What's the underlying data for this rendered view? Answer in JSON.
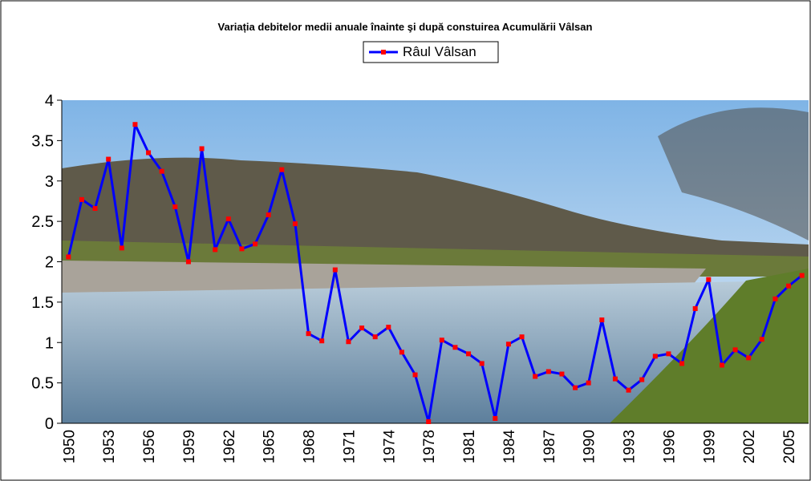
{
  "chart_data": {
    "type": "line",
    "title": "Variația debitelor medii anuale  înainte şi după constuirea Acumulării Vâlsan",
    "categories": [
      "1950",
      null,
      null,
      "1953",
      null,
      null,
      "1956",
      null,
      null,
      "1959",
      null,
      null,
      "1962",
      null,
      null,
      "1965",
      null,
      null,
      "1968",
      null,
      null,
      "1971",
      null,
      null,
      "1974",
      null,
      null,
      "1978",
      null,
      null,
      "1981",
      null,
      null,
      "1984",
      null,
      null,
      "1987",
      null,
      null,
      "1990",
      null,
      null,
      "1993",
      null,
      null,
      "1996",
      null,
      null,
      "1999",
      null,
      null,
      "2002",
      null,
      null,
      "2005",
      null
    ],
    "series": [
      {
        "name": "Râul Vâlsan",
        "color": "#0000ff",
        "marker_color": "#ff0000",
        "values": [
          2.06,
          2.77,
          2.66,
          3.27,
          2.17,
          3.7,
          3.35,
          3.12,
          2.68,
          2.0,
          3.4,
          2.15,
          2.53,
          2.16,
          2.22,
          2.58,
          3.14,
          2.47,
          1.11,
          1.02,
          1.9,
          1.01,
          1.18,
          1.07,
          1.19,
          0.88,
          0.6,
          0.02,
          1.03,
          0.94,
          0.86,
          0.74,
          0.06,
          0.98,
          1.07,
          0.58,
          0.64,
          0.61,
          0.44,
          0.5,
          1.28,
          0.55,
          0.41,
          0.54,
          0.83,
          0.86,
          0.74,
          1.42,
          1.78,
          0.72,
          0.91,
          0.81,
          1.04,
          1.54,
          1.7,
          1.83
        ]
      }
    ],
    "ylim": [
      0,
      4
    ],
    "yticks": [
      0,
      0.5,
      1,
      1.5,
      2,
      2.5,
      3,
      3.5,
      4
    ],
    "legend": "top"
  }
}
